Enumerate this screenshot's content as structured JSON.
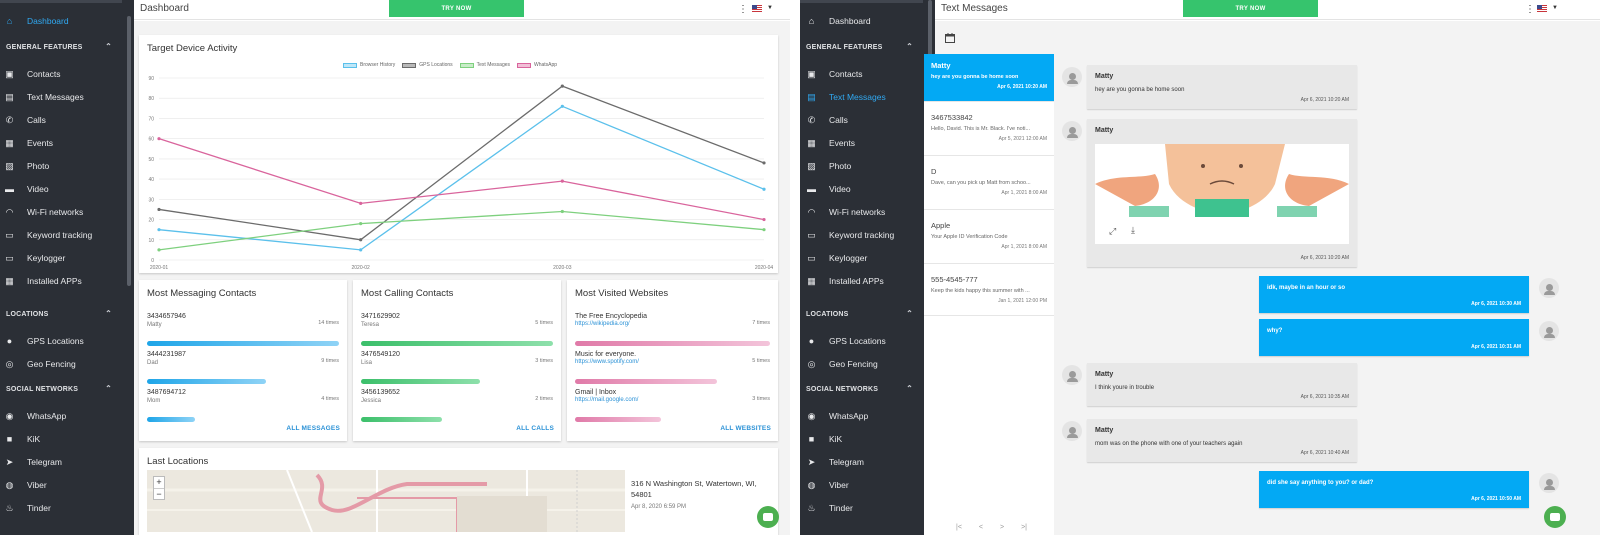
{
  "dashboard": {
    "topbar": {
      "title": "Dashboard",
      "try_now": "TRY NOW"
    },
    "sidebar": {
      "items": [
        {
          "key": "dashboard",
          "label": "Dashboard",
          "icon": "home-icon"
        },
        {
          "key": "general",
          "section": "GENERAL FEATURES"
        },
        {
          "key": "contacts",
          "label": "Contacts",
          "icon": "contacts-icon"
        },
        {
          "key": "text-messages",
          "label": "Text Messages",
          "icon": "message-icon"
        },
        {
          "key": "calls",
          "label": "Calls",
          "icon": "phone-icon"
        },
        {
          "key": "events",
          "label": "Events",
          "icon": "calendar-icon"
        },
        {
          "key": "photo",
          "label": "Photo",
          "icon": "photo-icon"
        },
        {
          "key": "video",
          "label": "Video",
          "icon": "video-icon"
        },
        {
          "key": "wifi",
          "label": "Wi-Fi networks",
          "icon": "wifi-icon"
        },
        {
          "key": "keyword",
          "label": "Keyword tracking",
          "icon": "keyboard-icon"
        },
        {
          "key": "keylogger",
          "label": "Keylogger",
          "icon": "keyboard-icon"
        },
        {
          "key": "apps",
          "label": "Installed APPs",
          "icon": "apps-icon"
        },
        {
          "key": "locations",
          "section": "LOCATIONS"
        },
        {
          "key": "gps",
          "label": "GPS Locations",
          "icon": "pin-icon"
        },
        {
          "key": "geofencing",
          "label": "Geo Fencing",
          "icon": "target-icon"
        },
        {
          "key": "social",
          "section": "SOCIAL NETWORKS"
        },
        {
          "key": "whatsapp",
          "label": "WhatsApp",
          "icon": "whatsapp-icon"
        },
        {
          "key": "kik",
          "label": "KiK",
          "icon": "chat-icon"
        },
        {
          "key": "telegram",
          "label": "Telegram",
          "icon": "telegram-icon"
        },
        {
          "key": "viber",
          "label": "Viber",
          "icon": "viber-icon"
        },
        {
          "key": "tinder",
          "label": "Tinder",
          "icon": "flame-icon"
        }
      ],
      "active": "dashboard"
    },
    "activity": {
      "title": "Target Device Activity",
      "legend": [
        {
          "name": "Browser History",
          "color": "#5bc0eb"
        },
        {
          "name": "GPS Locations",
          "color": "#6b6b6b"
        },
        {
          "name": "Text Messages",
          "color": "#7ed07e"
        },
        {
          "name": "WhatsApp",
          "color": "#d9649c"
        }
      ]
    },
    "messaging": {
      "title": "Most Messaging Contacts",
      "rows": [
        {
          "name": "3434657946",
          "sub": "Matty",
          "times": "14 times",
          "fill": 1.0
        },
        {
          "name": "3444231987",
          "sub": "Dad",
          "times": "9 times",
          "fill": 0.62
        },
        {
          "name": "3487694712",
          "sub": "Mom",
          "times": "4 times",
          "fill": 0.25
        }
      ],
      "link": "ALL MESSAGES"
    },
    "calling": {
      "title": "Most Calling Contacts",
      "rows": [
        {
          "name": "3471629902",
          "sub": "Teresa",
          "times": "5 times",
          "fill": 1.0
        },
        {
          "name": "3476549120",
          "sub": "Lisa",
          "times": "3 times",
          "fill": 0.62
        },
        {
          "name": "3456139652",
          "sub": "Jessica",
          "times": "2 times",
          "fill": 0.42
        }
      ],
      "link": "ALL CALLS"
    },
    "websites": {
      "title": "Most Visited Websites",
      "rows": [
        {
          "name": "The Free Encyclopedia",
          "url": "https://wikipedia.org/",
          "times": "7 times",
          "fill": 1.0
        },
        {
          "name": "Music for everyone.",
          "url": "https://www.spotify.com/",
          "times": "5 times",
          "fill": 0.73
        },
        {
          "name": "Gmail | Inbox",
          "url": "https://mail.google.com/",
          "times": "3 times",
          "fill": 0.44
        }
      ],
      "link": "ALL WEBSITES"
    },
    "last_locations": {
      "title": "Last Locations",
      "address": "316 N Washington St, Watertown, WI, 54801",
      "date": "Apr 8, 2020 6:59 PM",
      "zoom_in": "+",
      "zoom_out": "−"
    }
  },
  "chart_data": {
    "type": "line",
    "title": "Target Device Activity",
    "x": [
      "2020-01",
      "2020-02",
      "2020-03",
      "2020-04"
    ],
    "ylim": [
      0,
      90
    ],
    "yticks": [
      0,
      10,
      20,
      30,
      40,
      50,
      60,
      70,
      80,
      90
    ],
    "series": [
      {
        "name": "Browser History",
        "color": "#5bc0eb",
        "values": [
          15,
          5,
          76,
          35
        ]
      },
      {
        "name": "GPS Locations",
        "color": "#6b6b6b",
        "values": [
          25,
          10,
          86,
          48
        ]
      },
      {
        "name": "Text Messages",
        "color": "#7ed07e",
        "values": [
          5,
          18,
          24,
          15
        ]
      },
      {
        "name": "WhatsApp",
        "color": "#d9649c",
        "values": [
          60,
          28,
          39,
          20
        ]
      }
    ],
    "grid": true,
    "legend": "top-center"
  },
  "messages": {
    "topbar": {
      "title": "Text Messages",
      "try_now": "TRY NOW"
    },
    "sidebar": {
      "items": [
        {
          "key": "dashboard",
          "label": "Dashboard",
          "icon": "home-icon"
        },
        {
          "key": "general",
          "section": "GENERAL FEATURES"
        },
        {
          "key": "contacts",
          "label": "Contacts",
          "icon": "contacts-icon"
        },
        {
          "key": "text-messages",
          "label": "Text Messages",
          "icon": "message-icon"
        },
        {
          "key": "calls",
          "label": "Calls",
          "icon": "phone-icon"
        },
        {
          "key": "events",
          "label": "Events",
          "icon": "calendar-icon"
        },
        {
          "key": "photo",
          "label": "Photo",
          "icon": "photo-icon"
        },
        {
          "key": "video",
          "label": "Video",
          "icon": "video-icon"
        },
        {
          "key": "wifi",
          "label": "Wi-Fi networks",
          "icon": "wifi-icon"
        },
        {
          "key": "keyword",
          "label": "Keyword tracking",
          "icon": "keyboard-icon"
        },
        {
          "key": "keylogger",
          "label": "Keylogger",
          "icon": "keyboard-icon"
        },
        {
          "key": "apps",
          "label": "Installed APPs",
          "icon": "apps-icon"
        },
        {
          "key": "locations",
          "section": "LOCATIONS"
        },
        {
          "key": "gps",
          "label": "GPS Locations",
          "icon": "pin-icon"
        },
        {
          "key": "geofencing",
          "label": "Geo Fencing",
          "icon": "target-icon"
        },
        {
          "key": "social",
          "section": "SOCIAL NETWORKS"
        },
        {
          "key": "whatsapp",
          "label": "WhatsApp",
          "icon": "whatsapp-icon"
        },
        {
          "key": "kik",
          "label": "KiK",
          "icon": "chat-icon"
        },
        {
          "key": "telegram",
          "label": "Telegram",
          "icon": "telegram-icon"
        },
        {
          "key": "viber",
          "label": "Viber",
          "icon": "viber-icon"
        },
        {
          "key": "tinder",
          "label": "Tinder",
          "icon": "flame-icon"
        }
      ],
      "active": "text-messages"
    },
    "threads": [
      {
        "name": "Matty",
        "preview": "hey are you gonna be home soon",
        "date": "Apr 6, 2021 10:20 AM",
        "active": true
      },
      {
        "name": "3467533842",
        "preview": "Hello, David. This is Mr. Black. I've noti...",
        "date": "Apr 5, 2021 12:00 AM"
      },
      {
        "name": "D",
        "preview": "Dave, can you pick up Matt from schoo...",
        "date": "Apr 1, 2021 8:00 AM"
      },
      {
        "name": "Apple",
        "preview": "Your Apple ID Verification Code",
        "date": "Apr 1, 2021 8:00 AM"
      },
      {
        "name": "555-4545-777",
        "preview": "Keep the kids happy this summer with ...",
        "date": "Jan 1, 2021 12:00 PM"
      }
    ],
    "conversation": [
      {
        "dir": "in",
        "name": "Matty",
        "text": "hey are you gonna be home soon",
        "date": "Apr 6, 2021 10:20 AM"
      },
      {
        "dir": "in",
        "name": "Matty",
        "image": true,
        "date": "Apr 6, 2021 10:20 AM"
      },
      {
        "dir": "out",
        "text": "idk, maybe in an hour or so",
        "date": "Apr 6, 2021 10:30 AM"
      },
      {
        "dir": "out",
        "text": "why?",
        "date": "Apr 6, 2021 10:31 AM"
      },
      {
        "dir": "in",
        "name": "Matty",
        "text": "I think youre in trouble",
        "date": "Apr 6, 2021 10:35 AM"
      },
      {
        "dir": "in",
        "name": "Matty",
        "text": "mom was on the phone with one of your teachers again",
        "date": "Apr 6, 2021 10:40 AM"
      },
      {
        "dir": "out",
        "text": "did she say anything to you? or dad?",
        "date": "Apr 6, 2021 10:50 AM"
      }
    ],
    "pager": [
      "|<",
      "<",
      ">",
      ">|"
    ]
  },
  "colors": {
    "sidebar_bg": "#2b2f36",
    "accent": "#03a9f4",
    "try_now": "#36c46d",
    "messaging_bar": "#1ea5e8",
    "calling_bar": "#3bbf6a",
    "websites_bar": "#e07aa8"
  }
}
